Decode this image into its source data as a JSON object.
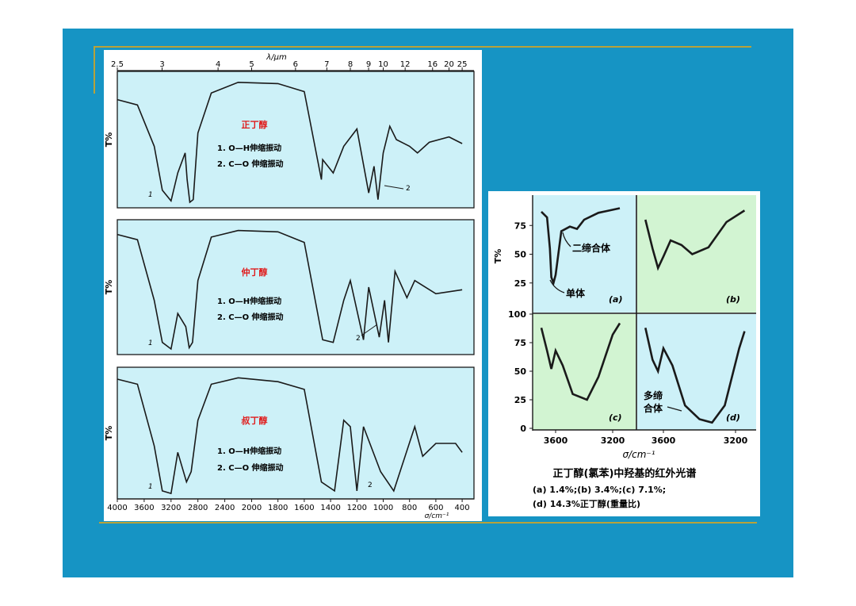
{
  "colors": {
    "slide_bg": "#1694c4",
    "panel_bg": "#ffffff",
    "plot_bg": "#cdf1f8",
    "green_bg": "#d2f4d2",
    "line": "#1a1a1a",
    "title_red": "#e01b1b",
    "rule": "#b8a23a"
  },
  "left": {
    "top_axis_label": "λ/μm",
    "top_ticks": [
      "2.5",
      "3",
      "4",
      "5",
      "6",
      "7",
      "8",
      "9",
      "10",
      "12",
      "16",
      "20",
      "25"
    ],
    "bottom_ticks": [
      "4000",
      "3600",
      "3200",
      "2800",
      "2400",
      "2000",
      "1800",
      "1600",
      "1400",
      "1200",
      "1000",
      "800",
      "600",
      "400"
    ],
    "x_axis_label": "σ/cm⁻¹",
    "ylabel_a": "T%",
    "ylabel_b": "T%",
    "ylabel_c": "T%",
    "spectra": [
      {
        "name": "正丁醇",
        "note1": "1. O—H伸缩振动",
        "note2": "2. C—O 伸缩振动",
        "mark1": "1",
        "mark2": "2"
      },
      {
        "name": "仲丁醇",
        "note1": "1. O—H伸缩振动",
        "note2": "2. C—O 伸缩振动",
        "mark1": "1",
        "mark2": "2"
      },
      {
        "name": "叔丁醇",
        "note1": "1. O—H伸缩振动",
        "note2": "2. C—O 伸缩振动",
        "mark1": "1",
        "mark2": "2"
      }
    ]
  },
  "right": {
    "ylabel": "T%",
    "y_ticks_top": [
      "75",
      "50",
      "25"
    ],
    "y_ticks_bottom": [
      "100",
      "75",
      "50",
      "25",
      "0"
    ],
    "x_ticks_left": [
      "3600",
      "3200"
    ],
    "x_ticks_right": [
      "3600",
      "3200"
    ],
    "x_axis_label": "σ/cm⁻¹",
    "label_dimer": "二缔合体",
    "label_monomer": "单体",
    "label_poly_1": "多缔",
    "label_poly_2": "合体",
    "panel_a": "(a)",
    "panel_b": "(b)",
    "panel_c": "(c)",
    "panel_d": "(d)",
    "caption_title": "正丁醇(氯苯)中羟基的红外光谱",
    "caption_line1": "(a) 1.4%;(b) 3.4%;(c) 7.1%;",
    "caption_line2": "(d) 14.3%正丁醇(重量比)"
  },
  "chart_data": [
    {
      "type": "line",
      "title": "正丁醇",
      "xlabel": "σ/cm⁻¹",
      "ylabel": "T%",
      "x_ticks": [
        4000,
        3600,
        3200,
        2800,
        2400,
        2000,
        1800,
        1600,
        1400,
        1200,
        1000,
        800,
        600,
        400
      ],
      "annotations": [
        "1. O—H伸缩振动",
        "2. C—O 伸缩振动"
      ],
      "series": [
        {
          "x": [
            4000,
            3700,
            3450,
            3330,
            3200,
            3100,
            2990,
            2960,
            2920,
            2870,
            2800,
            2600,
            2200,
            1800,
            1600,
            1470,
            1460,
            1380,
            1300,
            1200,
            1110,
            1070,
            1040,
            1000,
            950,
            900,
            800,
            740,
            650,
            500,
            400
          ],
          "y": [
            80,
            76,
            45,
            12,
            4,
            25,
            40,
            20,
            3,
            5,
            55,
            85,
            93,
            92,
            86,
            20,
            35,
            25,
            45,
            58,
            10,
            30,
            5,
            40,
            60,
            50,
            45,
            40,
            48,
            52,
            47
          ]
        }
      ]
    },
    {
      "type": "line",
      "title": "仲丁醇",
      "xlabel": "σ/cm⁻¹",
      "ylabel": "T%",
      "annotations": [
        "1. O—H伸缩振动",
        "2. C—O 伸缩振动"
      ],
      "series": [
        {
          "x": [
            4000,
            3700,
            3450,
            3330,
            3200,
            3100,
            2980,
            2930,
            2880,
            2800,
            2600,
            2200,
            1800,
            1600,
            1460,
            1380,
            1300,
            1250,
            1150,
            1110,
            1030,
            990,
            960,
            910,
            820,
            760,
            600,
            400
          ],
          "y": [
            90,
            86,
            40,
            8,
            3,
            30,
            20,
            4,
            8,
            55,
            88,
            93,
            92,
            84,
            10,
            8,
            40,
            55,
            10,
            50,
            12,
            40,
            8,
            62,
            42,
            55,
            45,
            48
          ]
        }
      ]
    },
    {
      "type": "line",
      "title": "叔丁醇",
      "xlabel": "σ/cm⁻¹",
      "ylabel": "T%",
      "annotations": [
        "1. O—H伸缩振动",
        "2. C—O 伸缩振动"
      ],
      "series": [
        {
          "x": [
            4000,
            3700,
            3450,
            3330,
            3200,
            3100,
            2970,
            2900,
            2800,
            2600,
            2200,
            1800,
            1600,
            1470,
            1370,
            1300,
            1250,
            1200,
            1150,
            1020,
            920,
            760,
            700,
            600,
            450,
            400
          ],
          "y": [
            92,
            88,
            40,
            5,
            3,
            35,
            12,
            20,
            60,
            88,
            93,
            90,
            84,
            12,
            5,
            60,
            55,
            5,
            55,
            20,
            5,
            55,
            32,
            42,
            42,
            35
          ]
        }
      ]
    },
    {
      "type": "line",
      "title": "(a)",
      "xlabel": "σ/cm⁻¹",
      "ylabel": "T%",
      "annotations": [
        "二缔合体",
        "单体"
      ],
      "series": [
        {
          "x": [
            3700,
            3660,
            3640,
            3630,
            3615,
            3600,
            3560,
            3500,
            3450,
            3400,
            3300,
            3150
          ],
          "y": [
            87,
            82,
            55,
            30,
            25,
            32,
            70,
            74,
            72,
            80,
            86,
            90
          ]
        }
      ]
    },
    {
      "type": "line",
      "title": "(b)",
      "series": [
        {
          "x": [
            3700,
            3660,
            3630,
            3600,
            3560,
            3500,
            3440,
            3350,
            3250,
            3150
          ],
          "y": [
            80,
            55,
            38,
            48,
            62,
            58,
            50,
            56,
            78,
            88
          ]
        }
      ]
    },
    {
      "type": "line",
      "title": "(c)",
      "series": [
        {
          "x": [
            3700,
            3660,
            3630,
            3600,
            3550,
            3480,
            3380,
            3300,
            3200,
            3150
          ],
          "y": [
            88,
            68,
            52,
            68,
            55,
            30,
            25,
            45,
            82,
            92
          ]
        }
      ]
    },
    {
      "type": "line",
      "title": "(d)",
      "annotations": [
        "多缔",
        "合体"
      ],
      "series": [
        {
          "x": [
            3700,
            3660,
            3630,
            3600,
            3550,
            3480,
            3400,
            3330,
            3260,
            3180,
            3150
          ],
          "y": [
            88,
            60,
            50,
            70,
            55,
            20,
            8,
            5,
            20,
            70,
            85
          ]
        }
      ]
    }
  ]
}
